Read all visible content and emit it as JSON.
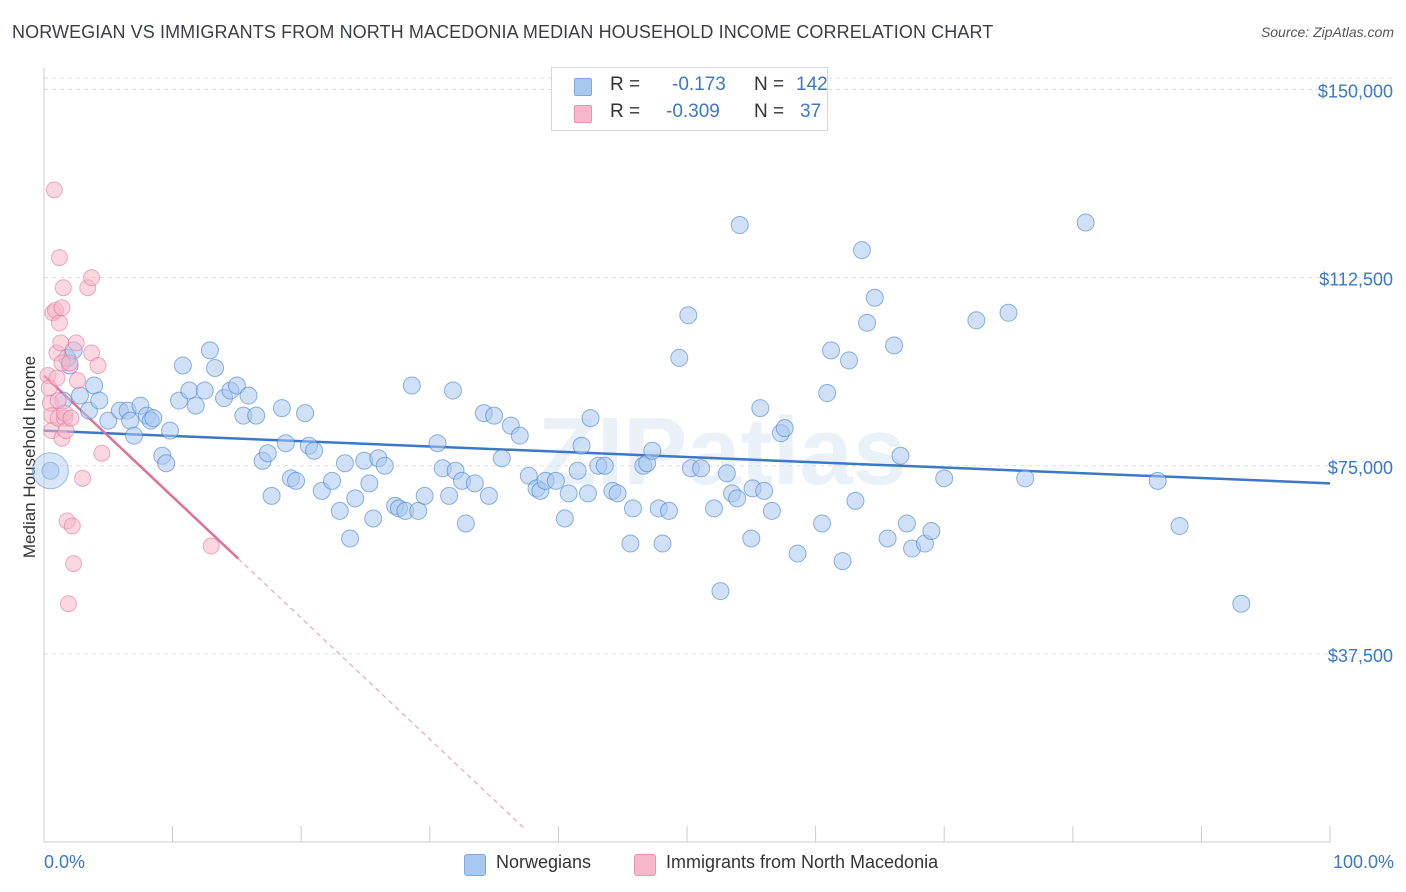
{
  "title": "NORWEGIAN VS IMMIGRANTS FROM NORTH MACEDONIA MEDIAN HOUSEHOLD INCOME CORRELATION CHART",
  "source": "Source: ZipAtlas.com",
  "watermark": "ZIPatlas",
  "legend": {
    "rows": [
      {
        "r_label": "R =",
        "r_value": "-0.173",
        "n_label": "N =",
        "n_value": "142",
        "color": "#a9c8f0"
      },
      {
        "r_label": "R =",
        "r_value": "-0.309",
        "n_label": "N =",
        "n_value": "37",
        "color": "#f5b7c9"
      }
    ]
  },
  "bottom_legend": {
    "items": [
      {
        "label": "Norwegians",
        "color": "#a9c8f0"
      },
      {
        "label": "Immigrants from North Macedonia",
        "color": "#f5b7c9"
      }
    ]
  },
  "chart_data": {
    "type": "scatter",
    "title": "NORWEGIAN VS IMMIGRANTS FROM NORTH MACEDONIA MEDIAN HOUSEHOLD INCOME CORRELATION CHART",
    "xlabel": "",
    "ylabel": "Median Household Income",
    "xlim": [
      0,
      100
    ],
    "ylim": [
      0,
      153500
    ],
    "x_tick_labels": [
      "0.0%",
      "100.0%"
    ],
    "y_ticks": [
      37500,
      75000,
      112500,
      150000
    ],
    "y_tick_labels": [
      "$37,500",
      "$75,000",
      "$112,500",
      "$150,000"
    ],
    "grid": true,
    "legend_position": "top-center",
    "series": [
      {
        "name": "Norwegians",
        "color": "#3b78c8",
        "fill": "#a9c8f0",
        "trend": {
          "x": [
            0,
            100
          ],
          "y": [
            82000,
            71500
          ],
          "dashed_x": null
        },
        "points": [
          [
            0.5,
            74000
          ],
          [
            1.5,
            88000
          ],
          [
            2,
            95000
          ],
          [
            1.8,
            96500
          ],
          [
            2.3,
            98000
          ],
          [
            2.8,
            89000
          ],
          [
            3.5,
            86000
          ],
          [
            3.9,
            91000
          ],
          [
            4.3,
            88000
          ],
          [
            5,
            84000
          ],
          [
            5.9,
            86000
          ],
          [
            6.5,
            86000
          ],
          [
            6.7,
            84000
          ],
          [
            7,
            81000
          ],
          [
            7.5,
            87000
          ],
          [
            8,
            85000
          ],
          [
            8.3,
            84000
          ],
          [
            8.5,
            84500
          ],
          [
            9.2,
            77000
          ],
          [
            9.5,
            75500
          ],
          [
            9.8,
            82000
          ],
          [
            10.5,
            88000
          ],
          [
            10.8,
            95000
          ],
          [
            11.3,
            90000
          ],
          [
            11.8,
            87000
          ],
          [
            12.5,
            90000
          ],
          [
            12.9,
            98000
          ],
          [
            13.3,
            94500
          ],
          [
            14,
            88500
          ],
          [
            14.5,
            90000
          ],
          [
            15,
            91000
          ],
          [
            15.5,
            85000
          ],
          [
            15.9,
            89000
          ],
          [
            16.5,
            85000
          ],
          [
            17,
            76000
          ],
          [
            17.4,
            77500
          ],
          [
            17.7,
            69000
          ],
          [
            18.5,
            86500
          ],
          [
            18.8,
            79500
          ],
          [
            19.2,
            72500
          ],
          [
            19.6,
            72000
          ],
          [
            20.3,
            85500
          ],
          [
            20.6,
            79000
          ],
          [
            21,
            78000
          ],
          [
            21.6,
            70000
          ],
          [
            22.4,
            72000
          ],
          [
            23,
            66000
          ],
          [
            23.4,
            75500
          ],
          [
            23.8,
            60500
          ],
          [
            24.2,
            68500
          ],
          [
            24.9,
            76000
          ],
          [
            25.3,
            71500
          ],
          [
            25.6,
            64500
          ],
          [
            26,
            76500
          ],
          [
            26.5,
            75000
          ],
          [
            27.3,
            67000
          ],
          [
            27.6,
            66500
          ],
          [
            28.1,
            66000
          ],
          [
            28.6,
            91000
          ],
          [
            29.1,
            66000
          ],
          [
            29.6,
            69000
          ],
          [
            30.6,
            79500
          ],
          [
            31,
            74500
          ],
          [
            31.5,
            69000
          ],
          [
            31.8,
            90000
          ],
          [
            32,
            74000
          ],
          [
            32.5,
            72000
          ],
          [
            32.8,
            63500
          ],
          [
            33.5,
            71500
          ],
          [
            34.2,
            85500
          ],
          [
            34.6,
            69000
          ],
          [
            35,
            85000
          ],
          [
            35.6,
            76500
          ],
          [
            36.3,
            83000
          ],
          [
            37,
            81000
          ],
          [
            37.7,
            73000
          ],
          [
            38.3,
            70500
          ],
          [
            38.6,
            70000
          ],
          [
            39,
            72000
          ],
          [
            39.8,
            72000
          ],
          [
            40.5,
            64500
          ],
          [
            40.8,
            69500
          ],
          [
            41.5,
            74000
          ],
          [
            41.8,
            79000
          ],
          [
            42.3,
            69500
          ],
          [
            42.5,
            84500
          ],
          [
            43.1,
            75000
          ],
          [
            43.6,
            75000
          ],
          [
            44.2,
            70000
          ],
          [
            44.6,
            69500
          ],
          [
            45.6,
            59500
          ],
          [
            45.8,
            66500
          ],
          [
            46.6,
            75000
          ],
          [
            46.9,
            75500
          ],
          [
            47.3,
            78000
          ],
          [
            47.8,
            66500
          ],
          [
            48.1,
            59500
          ],
          [
            48.6,
            66000
          ],
          [
            49.4,
            96500
          ],
          [
            50.1,
            105000
          ],
          [
            50.3,
            74500
          ],
          [
            51.1,
            74500
          ],
          [
            52.1,
            66500
          ],
          [
            52.6,
            50000
          ],
          [
            53.1,
            73500
          ],
          [
            53.5,
            69500
          ],
          [
            53.9,
            68500
          ],
          [
            54.1,
            123000
          ],
          [
            55,
            60500
          ],
          [
            55.1,
            70500
          ],
          [
            55.7,
            86500
          ],
          [
            56,
            70000
          ],
          [
            56.6,
            66000
          ],
          [
            57.3,
            81500
          ],
          [
            57.6,
            82500
          ],
          [
            58.6,
            57500
          ],
          [
            60.5,
            63500
          ],
          [
            60.9,
            89500
          ],
          [
            61.2,
            98000
          ],
          [
            62.1,
            56000
          ],
          [
            62.6,
            96000
          ],
          [
            63.1,
            68000
          ],
          [
            63.6,
            118000
          ],
          [
            64,
            103500
          ],
          [
            64.6,
            108500
          ],
          [
            65.6,
            60500
          ],
          [
            66.1,
            99000
          ],
          [
            66.6,
            77000
          ],
          [
            67.1,
            63500
          ],
          [
            67.5,
            58500
          ],
          [
            68.5,
            59500
          ],
          [
            69,
            62000
          ],
          [
            70,
            72500
          ],
          [
            72.5,
            104000
          ],
          [
            75,
            105500
          ],
          [
            76.3,
            72500
          ],
          [
            81,
            123500
          ],
          [
            86.6,
            72000
          ],
          [
            88.3,
            63000
          ],
          [
            93.1,
            47500
          ]
        ]
      },
      {
        "name": "Immigrants from North Macedonia",
        "color": "#e0709a",
        "fill": "#f5b7c9",
        "trend": {
          "x": [
            0,
            15.1
          ],
          "y": [
            93000,
            56500
          ],
          "dashed_x": [
            15.1,
            37.5
          ]
        },
        "points": [
          [
            0.3,
            93000
          ],
          [
            0.4,
            90500
          ],
          [
            0.5,
            87500
          ],
          [
            0.6,
            85000
          ],
          [
            0.6,
            82000
          ],
          [
            0.7,
            105500
          ],
          [
            0.8,
            130000
          ],
          [
            0.9,
            106000
          ],
          [
            1,
            97500
          ],
          [
            1,
            92500
          ],
          [
            1.1,
            88000
          ],
          [
            1.1,
            84500
          ],
          [
            1.2,
            116500
          ],
          [
            1.2,
            103500
          ],
          [
            1.3,
            99500
          ],
          [
            1.4,
            106500
          ],
          [
            1.4,
            95500
          ],
          [
            1.4,
            80500
          ],
          [
            1.5,
            110500
          ],
          [
            1.6,
            84500
          ],
          [
            1.6,
            85500
          ],
          [
            1.7,
            82000
          ],
          [
            1.8,
            64000
          ],
          [
            1.9,
            47500
          ],
          [
            2,
            95500
          ],
          [
            2.1,
            84500
          ],
          [
            2.2,
            63000
          ],
          [
            2.3,
            55500
          ],
          [
            2.5,
            99500
          ],
          [
            2.6,
            92000
          ],
          [
            3,
            72500
          ],
          [
            3.4,
            110500
          ],
          [
            3.7,
            97500
          ],
          [
            3.7,
            112500
          ],
          [
            4.2,
            95000
          ],
          [
            4.5,
            77500
          ],
          [
            13,
            59000
          ]
        ]
      }
    ]
  }
}
